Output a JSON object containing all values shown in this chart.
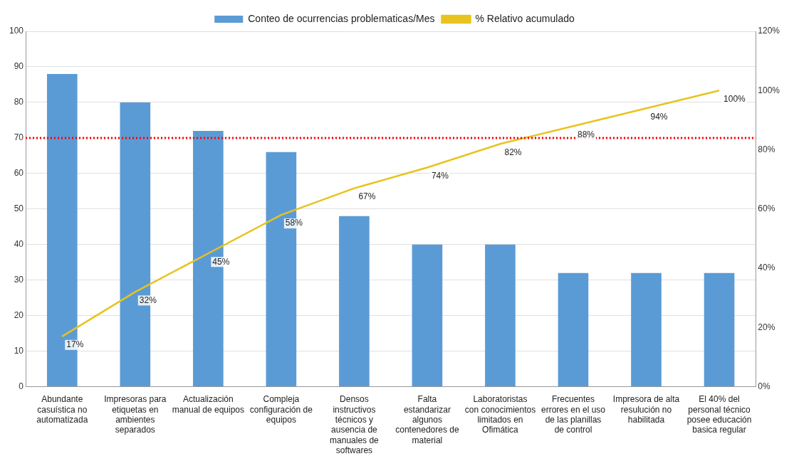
{
  "chart_data": {
    "type": "bar",
    "categories": [
      "Abundante casuística no automatizada",
      "Impresoras para etiquetas en ambientes separados",
      "Actualización manual de equipos",
      "Compleja configuración de equipos",
      "Densos instructivos técnicos y ausencia de manuales de softwares",
      "Falta estandarizar algunos contenedores de material",
      "Laboratoristas con conocimientos limitados en Ofimática",
      "Frecuentes errores en el uso de las planillas de control",
      "Impresora de alta resulución no habilitada",
      "El 40% del personal técnico posee educación basica regular"
    ],
    "series": [
      {
        "name": "Conteo de ocurrencias problematicas/Mes",
        "color": "#5b9bd5",
        "values": [
          88,
          80,
          72,
          66,
          48,
          40,
          40,
          32,
          32,
          32
        ]
      },
      {
        "name": "% Relativo acumulado",
        "type": "line",
        "axis": "y2",
        "color": "#e8c31e",
        "values": [
          17,
          32,
          45,
          58,
          67,
          74,
          82,
          88,
          94,
          100
        ],
        "value_labels": [
          "17%",
          "32%",
          "45%",
          "58%",
          "67%",
          "74%",
          "82%",
          "88%",
          "94%",
          "100%"
        ]
      }
    ],
    "ylim": [
      0,
      100
    ],
    "yticks": [
      0,
      10,
      20,
      30,
      40,
      50,
      60,
      70,
      80,
      90,
      100
    ],
    "y2lim": [
      0,
      120
    ],
    "y2ticks": [
      {
        "value": 0,
        "label": "0%"
      },
      {
        "value": 20,
        "label": "20%"
      },
      {
        "value": 40,
        "label": "40%"
      },
      {
        "value": 60,
        "label": "60%"
      },
      {
        "value": 80,
        "label": "80%"
      },
      {
        "value": 100,
        "label": "100%"
      },
      {
        "value": 120,
        "label": "120%"
      }
    ],
    "ref_lines": [
      {
        "axis": "y",
        "value": 70,
        "color": "#ff0000",
        "line_style": "dotted"
      }
    ],
    "grid": "y",
    "legend": "top",
    "marker": "none",
    "line_style": "solid"
  }
}
